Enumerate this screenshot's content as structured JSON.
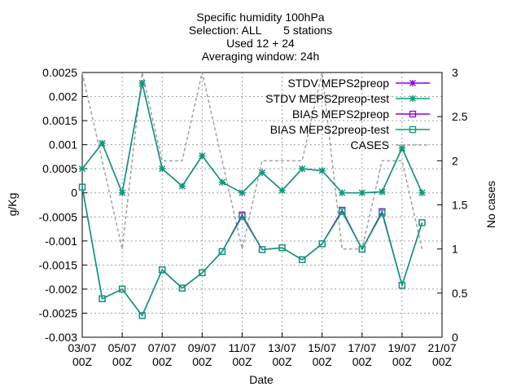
{
  "chart_data": {
    "type": "line",
    "title_lines": [
      "Specific humidity 100hPa",
      "Selection: ALL       5 stations",
      "Used 12 + 24",
      "Averaging window: 24h"
    ],
    "xlabel": "Date",
    "ylabel": "g/Kg",
    "y2label": "No cases",
    "x_start_date": "03/07 00Z",
    "x_range_days": [
      0,
      18
    ],
    "xticks": [
      {
        "d": 0,
        "l1": "03/07",
        "l2": "00Z"
      },
      {
        "d": 2,
        "l1": "05/07",
        "l2": "00Z"
      },
      {
        "d": 4,
        "l1": "07/07",
        "l2": "00Z"
      },
      {
        "d": 6,
        "l1": "09/07",
        "l2": "00Z"
      },
      {
        "d": 8,
        "l1": "11/07",
        "l2": "00Z"
      },
      {
        "d": 10,
        "l1": "13/07",
        "l2": "00Z"
      },
      {
        "d": 12,
        "l1": "15/07",
        "l2": "00Z"
      },
      {
        "d": 14,
        "l1": "17/07",
        "l2": "00Z"
      },
      {
        "d": 16,
        "l1": "19/07",
        "l2": "00Z"
      },
      {
        "d": 18,
        "l1": "21/07",
        "l2": "00Z"
      }
    ],
    "ylim": [
      -0.003,
      0.0025
    ],
    "yticks": [
      "0.0025",
      "0.002",
      "0.0015",
      "0.001",
      "0.0005",
      "0",
      "-0.0005",
      "-0.001",
      "-0.0015",
      "-0.002",
      "-0.0025",
      "-0.003"
    ],
    "y2lim": [
      0,
      3
    ],
    "y2ticks": [
      "3",
      "2.5",
      "2",
      "1.5",
      "1",
      "0.5",
      "0"
    ],
    "grid": true,
    "legend_position": "top-right",
    "series": [
      {
        "name": "STDV MEPS2preop",
        "axis": "y",
        "color": "#9400d3",
        "marker": "star",
        "x": [
          0,
          1,
          2,
          3,
          4,
          5,
          6,
          7,
          8,
          9,
          10,
          11,
          12,
          13,
          14,
          15,
          16,
          17
        ],
        "y": [
          0.0005,
          0.00103,
          0.0,
          0.00228,
          0.0005,
          0.00014,
          0.00077,
          0.00022,
          0.0,
          0.00042,
          5e-05,
          0.0005,
          0.00046,
          0.0,
          0.0,
          2e-05,
          0.00093,
          0.0
        ]
      },
      {
        "name": "STDV MEPS2preop-test",
        "axis": "y",
        "color": "#009e73",
        "marker": "star",
        "x": [
          0,
          1,
          2,
          3,
          4,
          5,
          6,
          7,
          8,
          9,
          10,
          11,
          12,
          13,
          14,
          15,
          16,
          17
        ],
        "y": [
          0.0005,
          0.00103,
          0.0,
          0.00228,
          0.0005,
          0.00014,
          0.00077,
          0.00022,
          0.0,
          0.00042,
          5e-05,
          0.0005,
          0.00046,
          0.0,
          0.0,
          2e-05,
          0.00093,
          0.0
        ]
      },
      {
        "name": "BIAS MEPS2preop",
        "axis": "y",
        "color": "#9400d3",
        "marker": "square",
        "x": [
          0,
          1,
          2,
          3,
          4,
          5,
          6,
          7,
          8,
          9,
          10,
          11,
          12,
          13,
          14,
          15,
          16,
          17
        ],
        "y": [
          0.00012,
          -0.0022,
          -0.002,
          -0.00255,
          -0.0016,
          -0.00198,
          -0.00166,
          -0.00122,
          -0.00046,
          -0.00118,
          -0.00114,
          -0.00139,
          -0.00106,
          -0.00036,
          -0.00117,
          -0.00039,
          -0.00192,
          -0.00062
        ]
      },
      {
        "name": "BIAS MEPS2preop-test",
        "axis": "y",
        "color": "#009e73",
        "marker": "square",
        "x": [
          0,
          1,
          2,
          3,
          4,
          5,
          6,
          7,
          8,
          9,
          10,
          11,
          12,
          13,
          14,
          15,
          16,
          17
        ],
        "y": [
          0.00012,
          -0.0022,
          -0.002,
          -0.00255,
          -0.0016,
          -0.00198,
          -0.00166,
          -0.00122,
          -0.00049,
          -0.00118,
          -0.00114,
          -0.00139,
          -0.00106,
          -0.00039,
          -0.00117,
          -0.00042,
          -0.00192,
          -0.00062
        ]
      },
      {
        "name": "CASES",
        "axis": "y2",
        "color": "#a0a0a0",
        "marker": "none",
        "dashed": true,
        "x": [
          0,
          1,
          2,
          3,
          4,
          5,
          6,
          7,
          8,
          9,
          10,
          11,
          12,
          13,
          14,
          15,
          16,
          17
        ],
        "y": [
          3,
          2,
          1,
          3,
          2,
          2,
          3,
          2,
          1,
          2,
          2,
          2,
          3,
          1,
          1,
          2,
          2,
          1
        ]
      }
    ]
  }
}
